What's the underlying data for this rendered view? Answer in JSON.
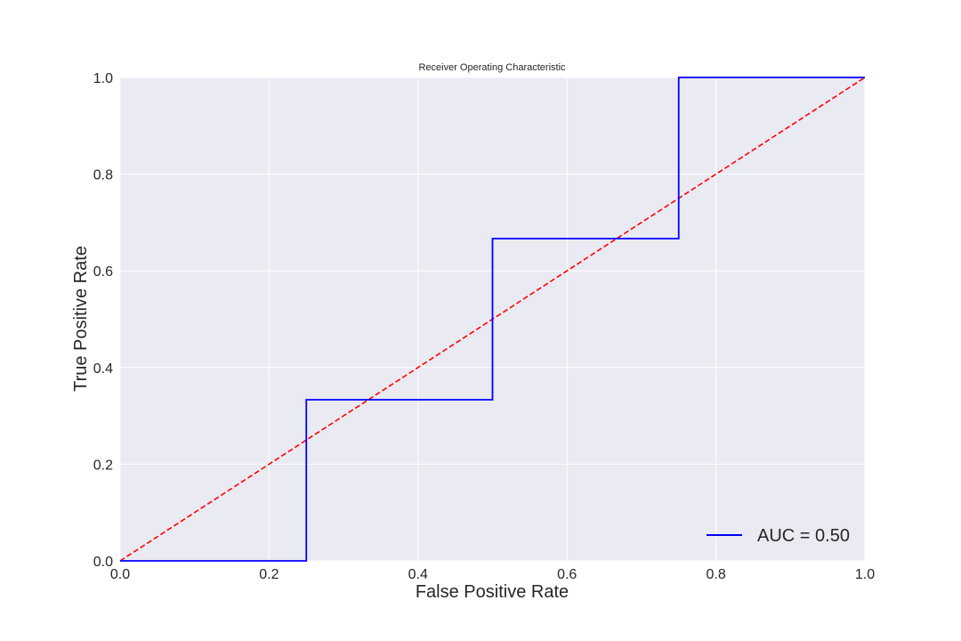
{
  "chart_data": {
    "type": "line",
    "title": "Receiver Operating Characteristic",
    "xlabel": "False Positive Rate",
    "ylabel": "True Positive Rate",
    "xlim": [
      0.0,
      1.0
    ],
    "ylim": [
      0.0,
      1.0
    ],
    "xticks": [
      "0.0",
      "0.2",
      "0.4",
      "0.6",
      "0.8",
      "1.0"
    ],
    "yticks": [
      "0.0",
      "0.2",
      "0.4",
      "0.6",
      "0.8",
      "1.0"
    ],
    "grid": true,
    "legend_position": "lower-right",
    "series": [
      {
        "name": "AUC = 0.50",
        "color": "#0000ff",
        "style": "solid",
        "x": [
          0.0,
          0.25,
          0.25,
          0.5,
          0.5,
          0.75,
          0.75,
          1.0
        ],
        "y": [
          0.0,
          0.0,
          0.3333,
          0.3333,
          0.6667,
          0.6667,
          1.0,
          1.0
        ]
      },
      {
        "color": "#ff0000",
        "style": "dashed",
        "x": [
          0.0,
          1.0
        ],
        "y": [
          0.0,
          1.0
        ]
      }
    ],
    "plot_background": "#eaeaf2",
    "grid_color": "#ffffff"
  }
}
